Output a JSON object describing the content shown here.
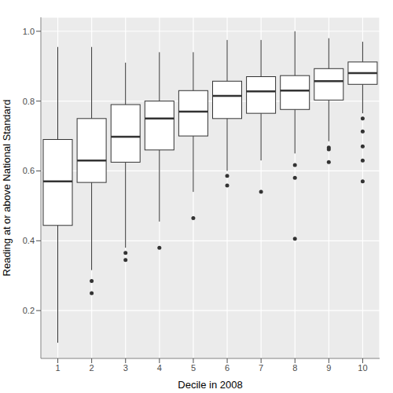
{
  "chart_data": {
    "type": "boxplot",
    "x_label": "Decile in 2008",
    "y_label": "Reading at or above National Standard",
    "categories": [
      1,
      2,
      3,
      4,
      5,
      6,
      7,
      8,
      9,
      10
    ],
    "boxes": [
      {
        "whislo": 0.108,
        "q1": 0.444,
        "med": 0.57,
        "q3": 0.69,
        "whishi": 0.955,
        "fliers": []
      },
      {
        "whislo": 0.316,
        "q1": 0.567,
        "med": 0.63,
        "q3": 0.75,
        "whishi": 0.955,
        "fliers": [
          0.285,
          0.25
        ]
      },
      {
        "whislo": 0.38,
        "q1": 0.625,
        "med": 0.698,
        "q3": 0.79,
        "whishi": 0.91,
        "fliers": [
          0.365,
          0.345
        ]
      },
      {
        "whislo": 0.455,
        "q1": 0.66,
        "med": 0.75,
        "q3": 0.8,
        "whishi": 0.94,
        "fliers": [
          0.38
        ]
      },
      {
        "whislo": 0.54,
        "q1": 0.7,
        "med": 0.77,
        "q3": 0.83,
        "whishi": 0.94,
        "fliers": [
          0.465
        ]
      },
      {
        "whislo": 0.6,
        "q1": 0.75,
        "med": 0.815,
        "q3": 0.857,
        "whishi": 0.975,
        "fliers": [
          0.586,
          0.558
        ]
      },
      {
        "whislo": 0.63,
        "q1": 0.765,
        "med": 0.828,
        "q3": 0.87,
        "whishi": 0.975,
        "fliers": [
          0.54
        ]
      },
      {
        "whislo": 0.65,
        "q1": 0.776,
        "med": 0.83,
        "q3": 0.873,
        "whishi": 1.0,
        "fliers": [
          0.617,
          0.58,
          0.406
        ]
      },
      {
        "whislo": 0.685,
        "q1": 0.803,
        "med": 0.857,
        "q3": 0.893,
        "whishi": 0.98,
        "fliers": [
          0.667,
          0.662,
          0.625
        ]
      },
      {
        "whislo": 0.765,
        "q1": 0.848,
        "med": 0.88,
        "q3": 0.912,
        "whishi": 0.97,
        "fliers": [
          0.75,
          0.713,
          0.67,
          0.63,
          0.57
        ]
      }
    ],
    "color": "#333333",
    "ylim": [
      0.063,
      1.04
    ],
    "yticks": [
      0.2,
      0.4,
      0.6,
      0.8,
      {
        "value": 1,
        "label": "1.0"
      }
    ],
    "grid": true
  }
}
